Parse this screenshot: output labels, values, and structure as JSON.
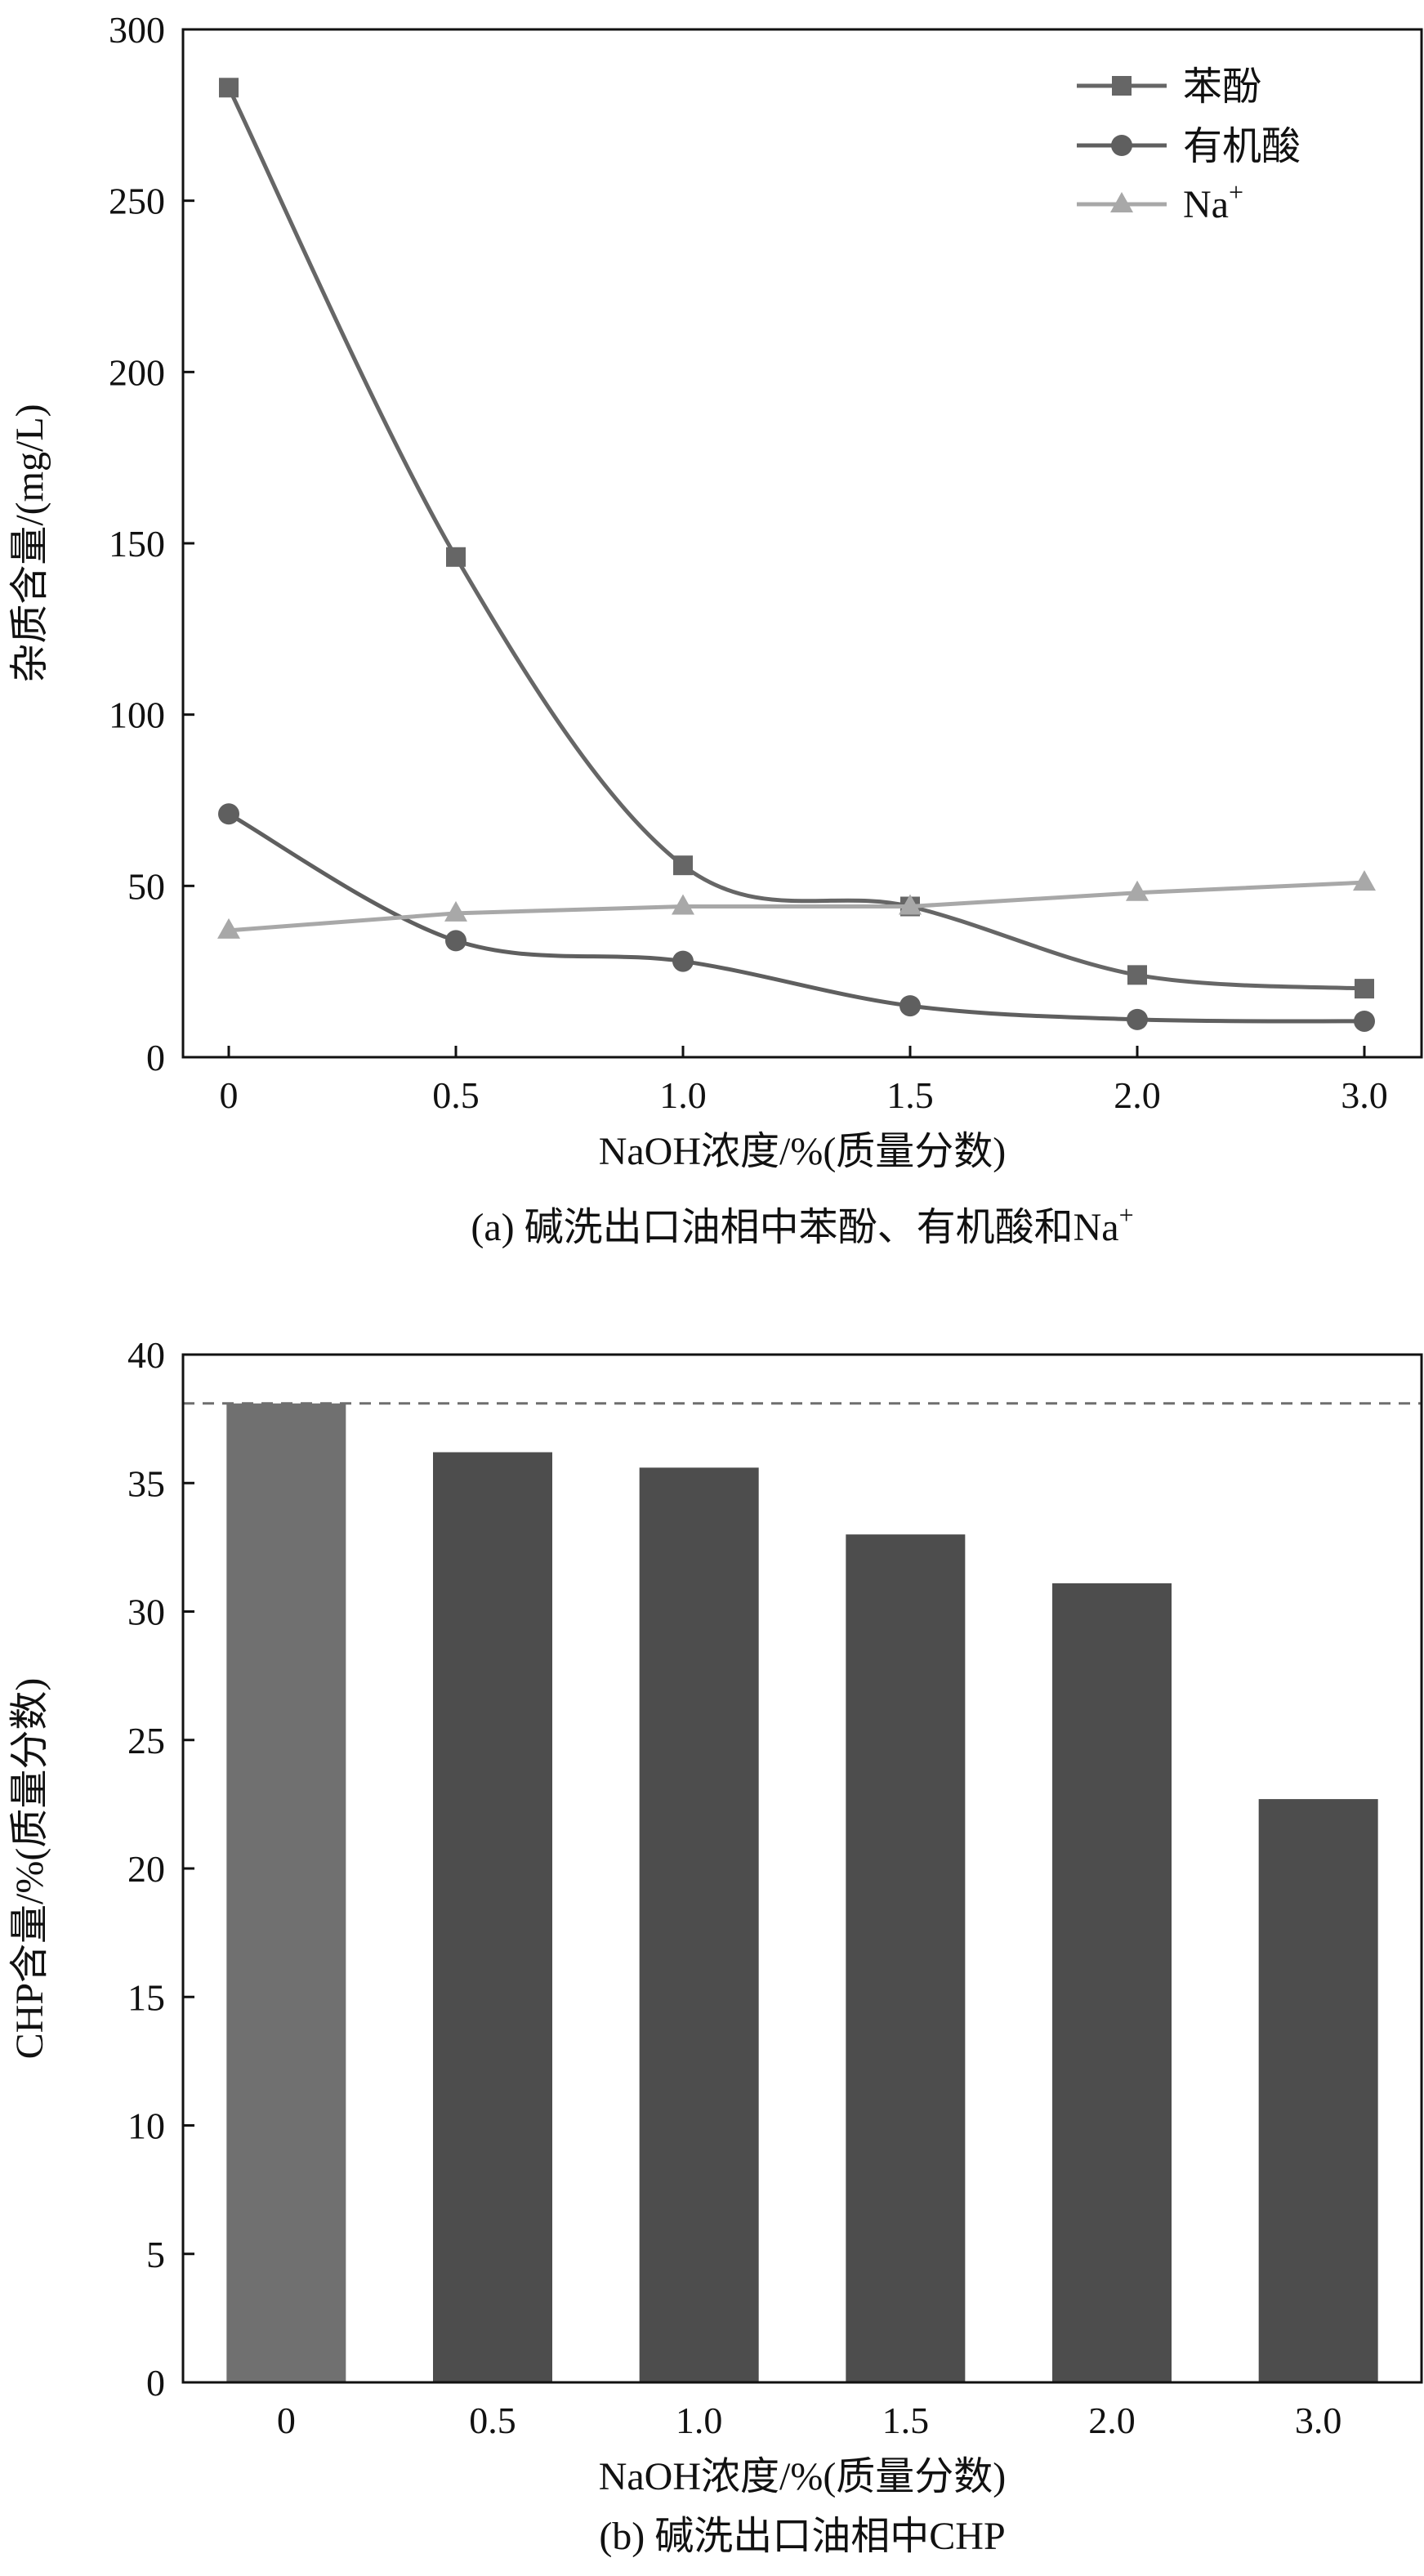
{
  "colors": {
    "phenol": "#666666",
    "acid": "#5f5f5f",
    "na": "#a8a8a8",
    "bar": "#4d4d4d",
    "bar_first": "#707070",
    "ref_line": "#6e6e6e",
    "axis": "#111111"
  },
  "chart_data": [
    {
      "type": "line",
      "categories": [
        "0",
        "0.5",
        "1.0",
        "1.5",
        "2.0",
        "3.0"
      ],
      "series": [
        {
          "name": "苯酚",
          "marker": "square",
          "values": [
            283,
            146,
            56,
            44,
            24,
            20
          ]
        },
        {
          "name": "有机酸",
          "marker": "circle",
          "values": [
            71,
            34,
            28,
            15,
            11,
            10.5
          ]
        },
        {
          "name": "Na+",
          "legend_base": "Na",
          "legend_sup": "+",
          "marker": "triangle",
          "values": [
            37,
            42,
            44,
            44,
            48,
            51
          ]
        }
      ],
      "ylim": [
        0,
        300
      ],
      "yticks": [
        "0",
        "50",
        "100",
        "150",
        "200",
        "250",
        "300"
      ],
      "ylabel": "杂质含量/(mg/L)",
      "xlabel": "NaOH浓度/%(质量分数)",
      "caption_base": "(a) 碱洗出口油相中苯酚、有机酸和Na",
      "caption_sup": "+",
      "legend_position": "top-right"
    },
    {
      "type": "bar",
      "categories": [
        "0",
        "0.5",
        "1.0",
        "1.5",
        "2.0",
        "3.0"
      ],
      "values": [
        38.1,
        36.2,
        35.6,
        33.0,
        31.1,
        22.7
      ],
      "reference_line": 38.1,
      "ylim": [
        0,
        40
      ],
      "yticks": [
        "0",
        "5",
        "10",
        "15",
        "20",
        "25",
        "30",
        "35",
        "40"
      ],
      "ylabel": "CHP含量/%(质量分数)",
      "xlabel": "NaOH浓度/%(质量分数)",
      "caption": "(b) 碱洗出口油相中CHP"
    }
  ]
}
